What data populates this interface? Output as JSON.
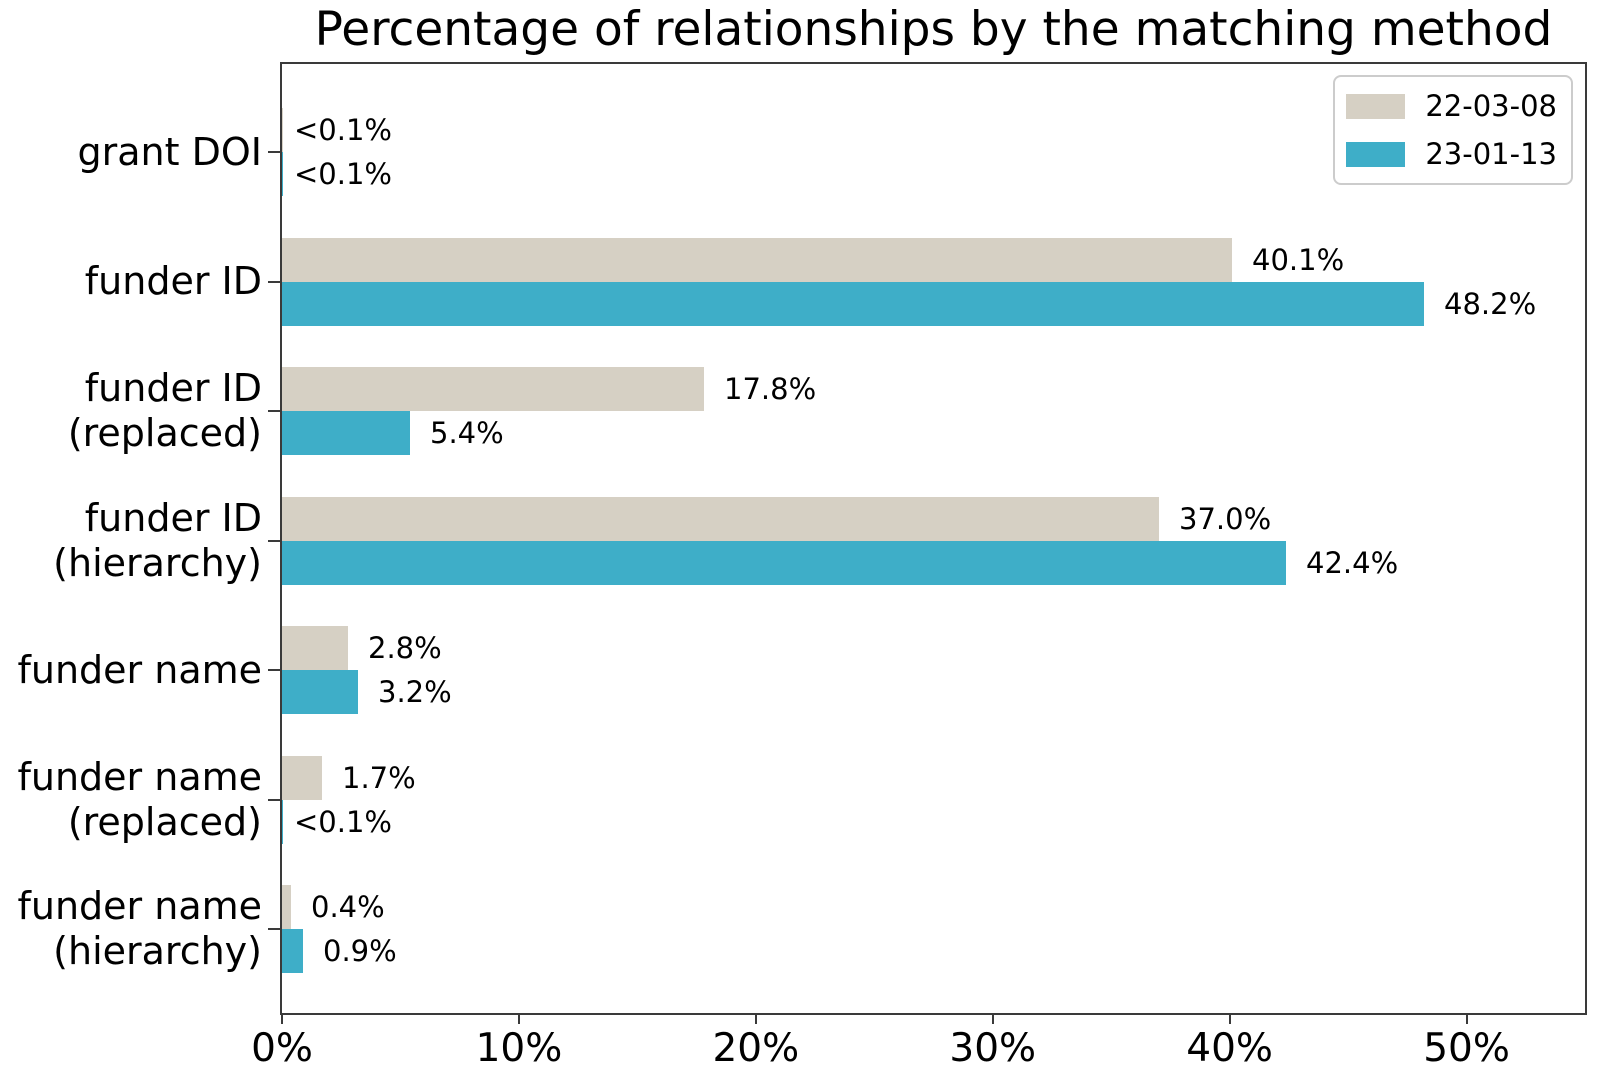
{
  "title": "Percentage of relationships by the matching method",
  "chart_data": {
    "type": "bar",
    "orientation": "horizontal",
    "title": "Percentage of relationships by the matching method",
    "categories": [
      "grant DOI",
      "funder ID",
      "funder ID\n(replaced)",
      "funder ID\n(hierarchy)",
      "funder name",
      "funder name\n(replaced)",
      "funder name\n(hierarchy)"
    ],
    "series": [
      {
        "name": "22-03-08",
        "color": "#d6d0c4",
        "values": [
          0.05,
          40.1,
          17.8,
          37.0,
          2.8,
          1.7,
          0.4
        ],
        "labels": [
          "<0.1%",
          "40.1%",
          "17.8%",
          "37.0%",
          "2.8%",
          "1.7%",
          "0.4%"
        ]
      },
      {
        "name": "23-01-13",
        "color": "#3eaec8",
        "values": [
          0.05,
          48.2,
          5.4,
          42.4,
          3.2,
          0.05,
          0.9
        ],
        "labels": [
          "<0.1%",
          "48.2%",
          "5.4%",
          "42.4%",
          "3.2%",
          "<0.1%",
          "0.9%"
        ]
      }
    ],
    "xlabel": "",
    "ylabel": "",
    "x_tick_labels": [
      "0%",
      "10%",
      "20%",
      "30%",
      "40%",
      "50%"
    ],
    "x_tick_values": [
      0,
      10,
      20,
      30,
      40,
      50
    ],
    "xlim": [
      0,
      55
    ],
    "grid": false,
    "legend_position": "upper right"
  },
  "legend": {
    "items": [
      {
        "label": "22-03-08",
        "color": "#d6d0c4"
      },
      {
        "label": "23-01-13",
        "color": "#3eaec8"
      }
    ]
  }
}
